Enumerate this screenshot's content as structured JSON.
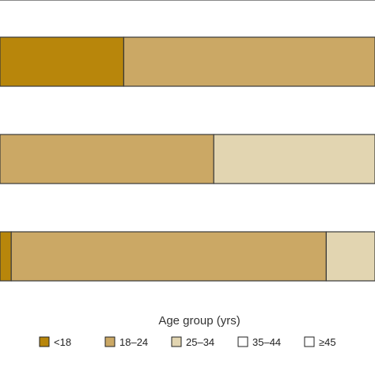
{
  "chart_data": {
    "type": "bar",
    "orientation": "horizontal",
    "stacked": true,
    "categories": [
      "",
      "",
      ""
    ],
    "series": [
      {
        "name": "<18",
        "values": [
          33,
          0,
          3
        ]
      },
      {
        "name": "18–24",
        "values": [
          67,
          57,
          84
        ]
      },
      {
        "name": "25–34",
        "values": [
          0,
          43,
          13
        ]
      },
      {
        "name": "35–44",
        "values": [
          0,
          0,
          0
        ]
      },
      {
        "name": "≥45",
        "values": [
          0,
          0,
          0
        ]
      }
    ],
    "xlim": [
      0,
      100
    ],
    "grid": false,
    "legend": {
      "title": "Age group (yrs)",
      "placement": "bottom"
    },
    "colors": {
      "<18": "#b8860b",
      "18–24": "#cba865",
      "25–34": "#e2d5b1",
      "35–44": "#ffffff",
      "≥45": "#ffffff",
      "bar_stroke": "#3a3a3a",
      "axis_line": "#888888"
    }
  }
}
